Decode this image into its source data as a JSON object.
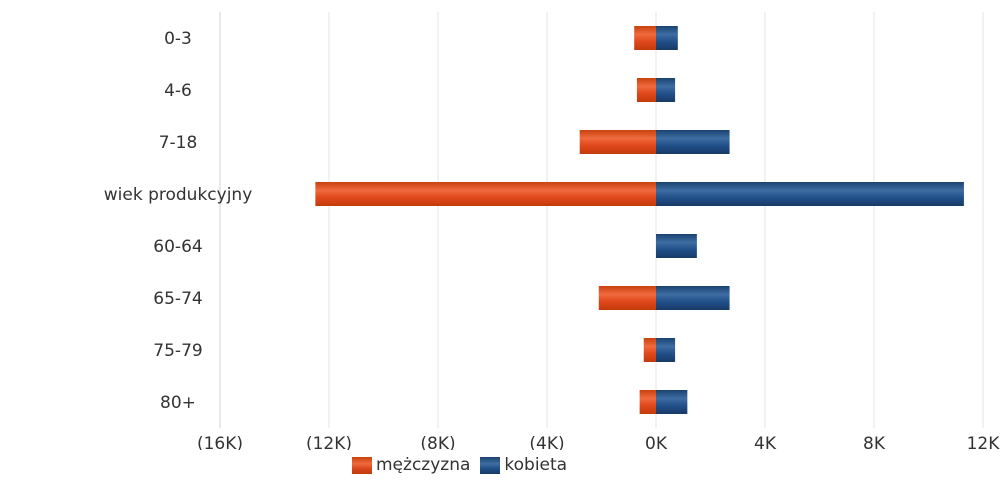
{
  "chart_data": {
    "type": "bar",
    "orientation": "horizontal",
    "stacked": true,
    "categories": [
      "0-3",
      "4-6",
      "7-18",
      "wiek produkcyjny",
      "60-64",
      "65-74",
      "75-79",
      "80+"
    ],
    "series": [
      {
        "name": "mężczyzna",
        "color": "#d9451a",
        "values": [
          -800,
          -700,
          -2800,
          -12500,
          0,
          -2100,
          -450,
          -600
        ]
      },
      {
        "name": "kobieta",
        "color": "#1f4e84",
        "values": [
          800,
          700,
          2700,
          11300,
          1500,
          2700,
          700,
          1150
        ]
      }
    ],
    "xlim": [
      -16000,
      12000
    ],
    "xticks": [
      {
        "value": -16000,
        "label": "(16K)"
      },
      {
        "value": -12000,
        "label": "(12K)"
      },
      {
        "value": -8000,
        "label": "(8K)"
      },
      {
        "value": -4000,
        "label": "(4K)"
      },
      {
        "value": 0,
        "label": "0K"
      },
      {
        "value": 4000,
        "label": "4K"
      },
      {
        "value": 8000,
        "label": "8K"
      },
      {
        "value": 12000,
        "label": "12K"
      }
    ],
    "grid": true,
    "legend_position": "bottom"
  }
}
